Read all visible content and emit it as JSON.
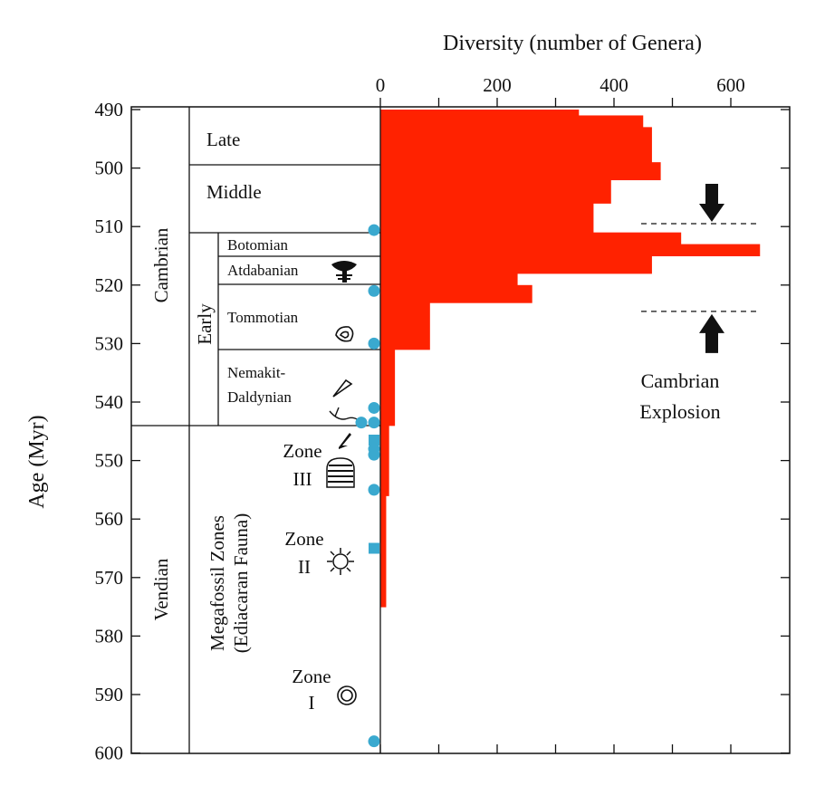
{
  "chart_data": {
    "type": "bar",
    "title": "Diversity (number of Genera)",
    "xlabel": "Diversity (number of Genera)",
    "ylabel": "Age (Myr)",
    "xlim": [
      0,
      700
    ],
    "ylim": [
      490,
      600
    ],
    "x_ticks": [
      "0",
      "200",
      "400",
      "600"
    ],
    "x_tick_values": [
      0,
      200,
      400,
      600
    ],
    "y_ticks": [
      "490",
      "500",
      "510",
      "520",
      "530",
      "540",
      "550",
      "560",
      "570",
      "580",
      "590",
      "600"
    ],
    "y_tick_values": [
      490,
      500,
      510,
      520,
      530,
      540,
      550,
      560,
      570,
      580,
      590,
      600
    ],
    "bars": [
      {
        "top": 490,
        "bottom": 491,
        "value": 340
      },
      {
        "top": 491,
        "bottom": 493,
        "value": 450
      },
      {
        "top": 493,
        "bottom": 499,
        "value": 465
      },
      {
        "top": 499,
        "bottom": 502,
        "value": 480
      },
      {
        "top": 502,
        "bottom": 506,
        "value": 395
      },
      {
        "top": 506,
        "bottom": 511,
        "value": 365
      },
      {
        "top": 511,
        "bottom": 513,
        "value": 515
      },
      {
        "top": 513,
        "bottom": 515,
        "value": 650
      },
      {
        "top": 515,
        "bottom": 518,
        "value": 465
      },
      {
        "top": 518,
        "bottom": 520,
        "value": 235
      },
      {
        "top": 520,
        "bottom": 523,
        "value": 260
      },
      {
        "top": 523,
        "bottom": 531,
        "value": 85
      },
      {
        "top": 531,
        "bottom": 544,
        "value": 25
      },
      {
        "top": 544,
        "bottom": 556,
        "value": 15
      },
      {
        "top": 556,
        "bottom": 575,
        "value": 10
      }
    ],
    "sample_markers": [
      {
        "age": 510.6,
        "shape": "circle"
      },
      {
        "age": 521,
        "shape": "circle"
      },
      {
        "age": 530,
        "shape": "circle"
      },
      {
        "age": 541,
        "shape": "circle"
      },
      {
        "age": 543.5,
        "shape": "circle",
        "offset": -1
      },
      {
        "age": 543.5,
        "shape": "circle",
        "offset": 0
      },
      {
        "age": 546.5,
        "shape": "square"
      },
      {
        "age": 548,
        "shape": "circle"
      },
      {
        "age": 549,
        "shape": "circle"
      },
      {
        "age": 555,
        "shape": "circle"
      },
      {
        "age": 565,
        "shape": "square"
      },
      {
        "age": 598,
        "shape": "circle"
      }
    ],
    "periods": [
      {
        "label": "Cambrian",
        "top": 490,
        "bottom": 544
      },
      {
        "label": "Vendian",
        "top": 544,
        "bottom": 600
      }
    ],
    "epochs": [
      {
        "label": "Late",
        "top": 490,
        "bottom": 499
      },
      {
        "label": "Middle",
        "top": 499,
        "bottom": 511
      },
      {
        "label": "Early",
        "top": 511,
        "bottom": 544
      }
    ],
    "stages": [
      {
        "label": "Botomian",
        "top": 511,
        "bottom": 515
      },
      {
        "label": "Atdabanian",
        "top": 515,
        "bottom": 520
      },
      {
        "label": "Tommotian",
        "top": 520,
        "bottom": 531
      },
      {
        "label_line1": "Nemakit-",
        "label_line2": "Daldynian",
        "top": 531,
        "bottom": 544
      }
    ],
    "megafossil_label_line1": "Megafossil Zones",
    "megafossil_label_line2": "(Ediacaran Fauna)",
    "zones": [
      {
        "line1": "Zone",
        "line2": "III"
      },
      {
        "line1": "Zone",
        "line2": "II"
      },
      {
        "line1": "Zone",
        "line2": "I"
      }
    ],
    "explosion": {
      "label_line1": "Cambrian",
      "label_line2": "Explosion",
      "upper_age": 509.5,
      "lower_age": 524.5
    },
    "colors": {
      "bar": "#ff2200",
      "marker": "#3aa9cf",
      "axis": "#111111"
    }
  }
}
